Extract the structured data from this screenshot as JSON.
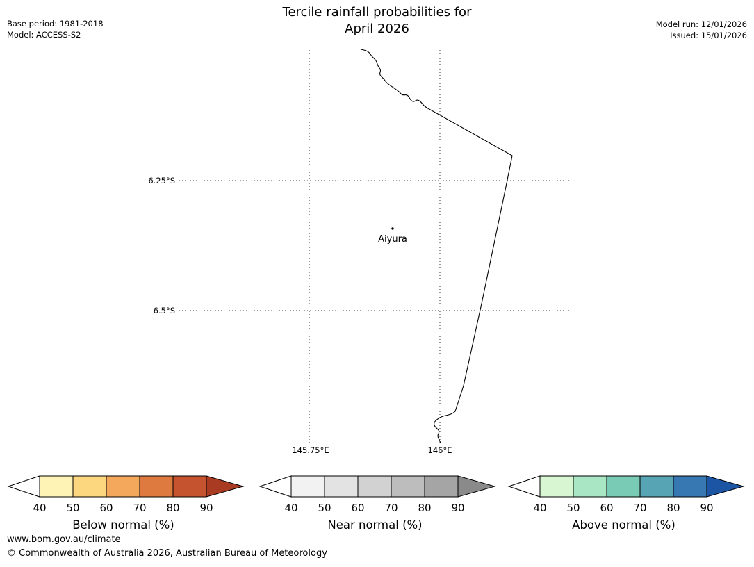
{
  "header": {
    "title_line1": "Tercile rainfall probabilities for",
    "title_line2": "April 2026",
    "base_period": "Base period: 1981-2018",
    "model": "Model: ACCESS-S2",
    "model_run": "Model run: 12/01/2026",
    "issued": "Issued: 15/01/2026"
  },
  "map": {
    "lat_labels": [
      {
        "text": "6.25°S"
      },
      {
        "text": "6.5°S"
      }
    ],
    "lon_labels": [
      {
        "text": "145.75°E"
      },
      {
        "text": "146°E"
      }
    ],
    "station": {
      "name": "Aiyura"
    }
  },
  "legends": [
    {
      "title": "Below normal (%)",
      "ticks": [
        "40",
        "50",
        "60",
        "70",
        "80",
        "90"
      ],
      "colors": [
        "#FEF3B4",
        "#FDD780",
        "#F3A85C",
        "#DE7A3F",
        "#C55330"
      ],
      "arrow_color": "#A93B22"
    },
    {
      "title": "Near normal (%)",
      "ticks": [
        "40",
        "50",
        "60",
        "70",
        "80",
        "90"
      ],
      "colors": [
        "#F2F2F2",
        "#E3E3E3",
        "#D2D2D2",
        "#BDBDBD",
        "#A5A5A5"
      ],
      "arrow_color": "#8A8A8A"
    },
    {
      "title": "Above normal (%)",
      "ticks": [
        "40",
        "50",
        "60",
        "70",
        "80",
        "90"
      ],
      "colors": [
        "#D8F6D2",
        "#A9E6C3",
        "#79CBB5",
        "#57A4B5",
        "#3778B2"
      ],
      "arrow_color": "#1D55A5"
    }
  ],
  "footer": {
    "url": "www.bom.gov.au/climate",
    "copyright": "© Commonwealth of Australia 2026, Australian Bureau of Meteorology"
  }
}
